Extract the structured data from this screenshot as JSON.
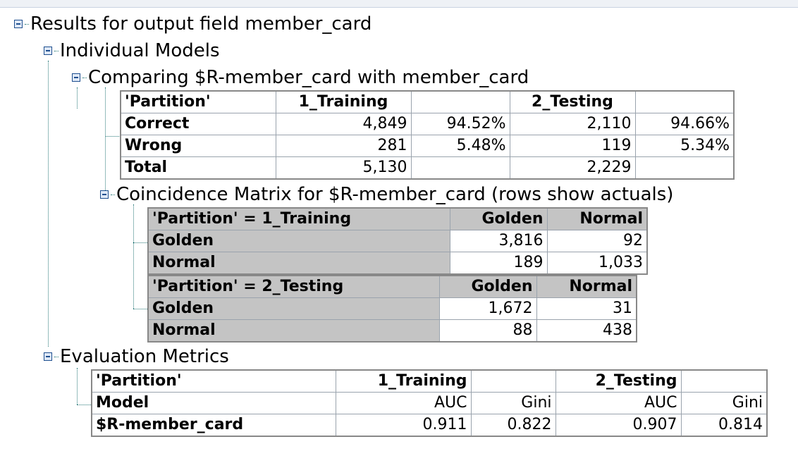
{
  "tree": {
    "root": "Results for output field member_card",
    "individual_models": "Individual Models",
    "comparing": "Comparing $R-member_card with member_card",
    "coincidence": "Coincidence Matrix for $R-member_card (rows show actuals)",
    "evaluation": "Evaluation Metrics"
  },
  "comparison": {
    "header": [
      "'Partition'",
      "1_Training",
      "",
      "2_Testing",
      ""
    ],
    "rows": [
      {
        "label": "Correct",
        "train_count": "4,849",
        "train_pct": "94.52%",
        "test_count": "2,110",
        "test_pct": "94.66%"
      },
      {
        "label": "Wrong",
        "train_count": "281",
        "train_pct": "5.48%",
        "test_count": "119",
        "test_pct": "5.34%"
      },
      {
        "label": "Total",
        "train_count": "5,130",
        "train_pct": "",
        "test_count": "2,229",
        "test_pct": ""
      }
    ]
  },
  "coincidence": {
    "training": {
      "title": "'Partition' = 1_Training",
      "col1": "Golden",
      "col2": "Normal",
      "rows": [
        {
          "label": "Golden",
          "v1": "3,816",
          "v2": "92"
        },
        {
          "label": "Normal",
          "v1": "189",
          "v2": "1,033"
        }
      ]
    },
    "testing": {
      "title": "'Partition' = 2_Testing",
      "col1": "Golden",
      "col2": "Normal",
      "rows": [
        {
          "label": "Golden",
          "v1": "1,672",
          "v2": "31"
        },
        {
          "label": "Normal",
          "v1": "88",
          "v2": "438"
        }
      ]
    }
  },
  "evaluation": {
    "header": [
      "'Partition'",
      "1_Training",
      "",
      "2_Testing",
      ""
    ],
    "subheader": [
      "Model",
      "AUC",
      "Gini",
      "AUC",
      "Gini"
    ],
    "row": [
      "$R-member_card",
      "0.911",
      "0.822",
      "0.907",
      "0.814"
    ]
  }
}
